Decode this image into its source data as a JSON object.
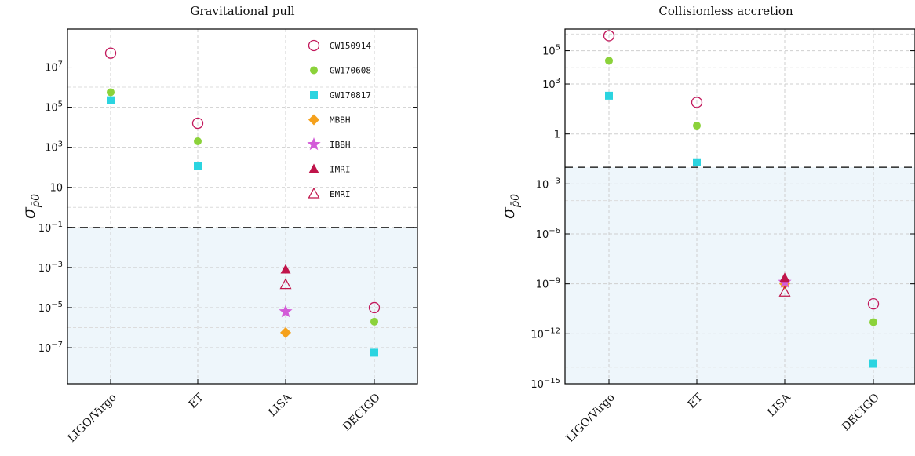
{
  "colors": {
    "GW150914": "#c2185b",
    "GW170608": "#8bd23a",
    "GW170817": "#2bd4e0",
    "MBBH": "#f5a11c",
    "IBBH": "#d35cd8",
    "IMRI": "#c0144a",
    "EMRI": "#c0144a",
    "band": "#eef6fb"
  },
  "chart_data": [
    {
      "type": "scatter",
      "title": "Gravitational pull",
      "ylabel": "σ_ρ̄0",
      "yscale": "log",
      "ylim_exp": [
        -8.8,
        8.9
      ],
      "threshold_exp": -1,
      "categories": [
        "LIGO/Virgo",
        "ET",
        "LISA",
        "DECIGO"
      ],
      "ytick_labels": [
        "10^-7",
        "10^-5",
        "10^-3",
        "10^-1",
        "10",
        "10^3",
        "10^5",
        "10^7"
      ],
      "legend": [
        "GW150914",
        "GW170608",
        "GW170817",
        "MBBH",
        "IBBH",
        "IMRI",
        "EMRI"
      ],
      "legend_position": "upper-right",
      "series": [
        {
          "name": "GW150914",
          "marker": "circle-open",
          "points": [
            {
              "x": "LIGO/Virgo",
              "y_exp": 7.7
            },
            {
              "x": "ET",
              "y_exp": 4.2
            },
            {
              "x": "DECIGO",
              "y_exp": -5
            }
          ]
        },
        {
          "name": "GW170608",
          "marker": "circle",
          "points": [
            {
              "x": "LIGO/Virgo",
              "y_exp": 5.75
            },
            {
              "x": "ET",
              "y_exp": 3.3
            },
            {
              "x": "DECIGO",
              "y_exp": -5.7
            }
          ]
        },
        {
          "name": "GW170817",
          "marker": "square",
          "points": [
            {
              "x": "LIGO/Virgo",
              "y_exp": 5.35
            },
            {
              "x": "ET",
              "y_exp": 2.05
            },
            {
              "x": "DECIGO",
              "y_exp": -7.25
            }
          ]
        },
        {
          "name": "MBBH",
          "marker": "diamond",
          "points": [
            {
              "x": "LISA",
              "y_exp": -6.25
            }
          ]
        },
        {
          "name": "IBBH",
          "marker": "star",
          "points": [
            {
              "x": "LISA",
              "y_exp": -5.2
            }
          ]
        },
        {
          "name": "IMRI",
          "marker": "triangle",
          "points": [
            {
              "x": "LISA",
              "y_exp": -3.1
            }
          ]
        },
        {
          "name": "EMRI",
          "marker": "triangle-open",
          "points": [
            {
              "x": "LISA",
              "y_exp": -3.85
            }
          ]
        }
      ]
    },
    {
      "type": "scatter",
      "title": "Collisionless accretion",
      "ylabel": "σ_ρ̄0",
      "yscale": "log",
      "ylim_exp": [
        -15,
        6.3
      ],
      "threshold_exp": -2,
      "categories": [
        "LIGO/Virgo",
        "ET",
        "LISA",
        "DECIGO"
      ],
      "ytick_labels": [
        "10^-15",
        "10^-12",
        "10^-9",
        "10^-6",
        "10^-3",
        "1",
        "10^3",
        "10^5"
      ],
      "series": [
        {
          "name": "GW150914",
          "marker": "circle-open",
          "points": [
            {
              "x": "LIGO/Virgo",
              "y_exp": 5.9
            },
            {
              "x": "ET",
              "y_exp": 1.9
            },
            {
              "x": "DECIGO",
              "y_exp": -10.2
            }
          ]
        },
        {
          "name": "GW170608",
          "marker": "circle",
          "points": [
            {
              "x": "LIGO/Virgo",
              "y_exp": 4.4
            },
            {
              "x": "ET",
              "y_exp": 0.5
            },
            {
              "x": "DECIGO",
              "y_exp": -11.3
            }
          ]
        },
        {
          "name": "GW170817",
          "marker": "square",
          "points": [
            {
              "x": "LIGO/Virgo",
              "y_exp": 2.3
            },
            {
              "x": "ET",
              "y_exp": -1.7
            },
            {
              "x": "DECIGO",
              "y_exp": -13.8
            }
          ]
        },
        {
          "name": "MBBH",
          "marker": "diamond",
          "points": [
            {
              "x": "LISA",
              "y_exp": -9
            }
          ]
        },
        {
          "name": "IBBH",
          "marker": "star",
          "points": [
            {
              "x": "LISA",
              "y_exp": -8.9
            }
          ]
        },
        {
          "name": "IMRI",
          "marker": "triangle",
          "points": [
            {
              "x": "LISA",
              "y_exp": -8.65
            }
          ]
        },
        {
          "name": "EMRI",
          "marker": "triangle-open",
          "points": [
            {
              "x": "LISA",
              "y_exp": -9.5
            }
          ]
        }
      ]
    }
  ]
}
